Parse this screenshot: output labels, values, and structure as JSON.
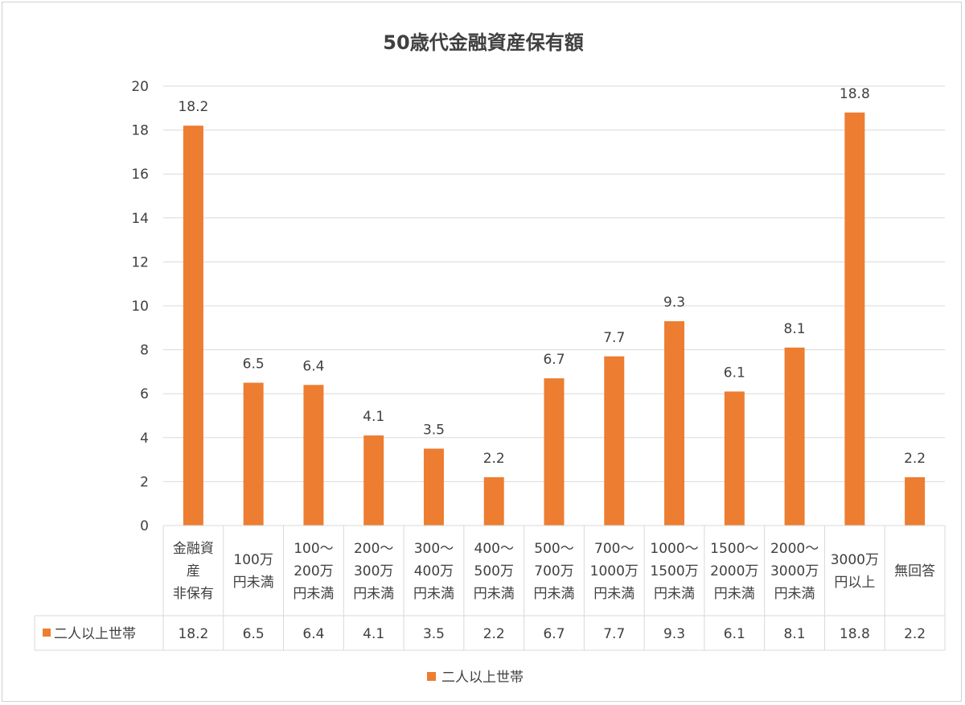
{
  "chart_data": {
    "type": "bar",
    "title": "50歳代金融資産保有額",
    "categories": [
      "金融資産非保有",
      "100万円未満",
      "100〜200万円未満",
      "200〜300万円未満",
      "300〜400万円未満",
      "400〜500万円未満",
      "500〜700万円未満",
      "700〜1000万円未満",
      "1000〜1500万円未満",
      "1500〜2000万円未満",
      "2000〜3000万円未満",
      "3000万円以上",
      "無回答"
    ],
    "category_lines": [
      [
        "金融資",
        "産",
        "非保有"
      ],
      [
        "100万",
        "円未満"
      ],
      [
        "100〜",
        "200万",
        "円未満"
      ],
      [
        "200〜",
        "300万",
        "円未満"
      ],
      [
        "300〜",
        "400万",
        "円未満"
      ],
      [
        "400〜",
        "500万",
        "円未満"
      ],
      [
        "500〜",
        "700万",
        "円未満"
      ],
      [
        "700〜",
        "1000万",
        "円未満"
      ],
      [
        "1000〜",
        "1500万",
        "円未満"
      ],
      [
        "1500〜",
        "2000万",
        "円未満"
      ],
      [
        "2000〜",
        "3000万",
        "円未満"
      ],
      [
        "3000万",
        "円以上"
      ],
      [
        "無回答"
      ]
    ],
    "series": [
      {
        "name": "二人以上世帯",
        "values": [
          18.2,
          6.5,
          6.4,
          4.1,
          3.5,
          2.2,
          6.7,
          7.7,
          9.3,
          6.1,
          8.1,
          18.8,
          2.2
        ],
        "value_labels": [
          "18.2",
          "6.5",
          "6.4",
          "4.1",
          "3.5",
          "2.2",
          "6.7",
          "7.7",
          "9.3",
          "6.1",
          "8.1",
          "18.8",
          "2.2"
        ],
        "color": "#ED7D31"
      }
    ],
    "ylim": [
      0,
      20
    ],
    "yticks": [
      "0",
      "2",
      "4",
      "6",
      "8",
      "10",
      "12",
      "14",
      "16",
      "18",
      "20"
    ],
    "grid": true,
    "data_table": true,
    "legend_position": "bottom",
    "xlabel": "",
    "ylabel": ""
  },
  "colors": {
    "bar": "#ED7D31",
    "grid": "#d9d9d9",
    "text": "#404040"
  }
}
